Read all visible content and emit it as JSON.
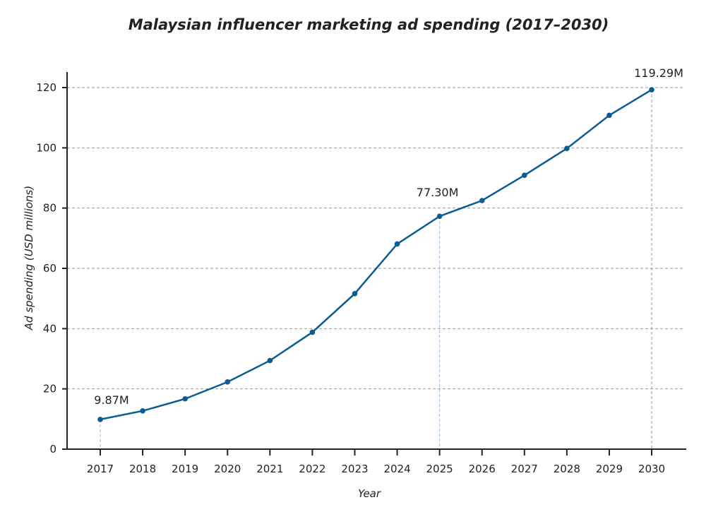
{
  "chart_data": {
    "type": "line",
    "title": "Malaysian influencer marketing ad spending (2017–2030)",
    "xlabel": "Year",
    "ylabel": "Ad spending (USD millions)",
    "categories": [
      "2017",
      "2018",
      "2019",
      "2020",
      "2021",
      "2022",
      "2023",
      "2024",
      "2025",
      "2026",
      "2027",
      "2028",
      "2029",
      "2030"
    ],
    "series": [
      {
        "values": [
          9.87,
          12.7,
          16.7,
          22.3,
          29.4,
          38.8,
          51.6,
          68.1,
          77.3,
          82.5,
          90.9,
          99.8,
          110.8,
          119.29
        ],
        "color": "#0b5d91"
      }
    ],
    "ylim": [
      0,
      125
    ],
    "yticks": [
      0,
      20,
      40,
      60,
      80,
      100,
      120
    ],
    "grid": "horizontal dashed",
    "annotations": [
      {
        "index": 0,
        "text": "9.87M"
      },
      {
        "index": 8,
        "text": "77.30M"
      },
      {
        "index": 13,
        "text": "119.29M"
      }
    ],
    "legend": "none"
  }
}
